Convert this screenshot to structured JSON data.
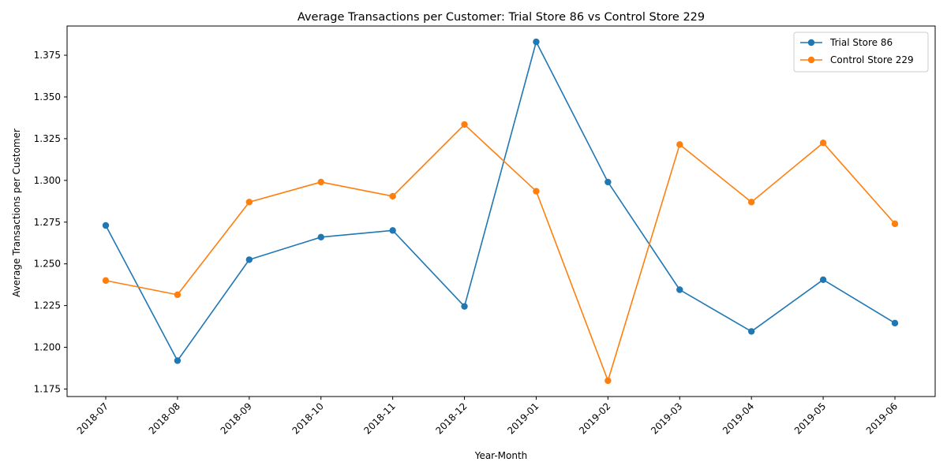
{
  "chart_data": {
    "type": "line",
    "title": "Average Transactions per Customer: Trial Store 86 vs Control Store 229",
    "xlabel": "Year-Month",
    "ylabel": "Average Transactions per Customer",
    "categories": [
      "2018-07",
      "2018-08",
      "2018-09",
      "2018-10",
      "2018-11",
      "2018-12",
      "2019-01",
      "2019-02",
      "2019-03",
      "2019-04",
      "2019-05",
      "2019-06"
    ],
    "yticks": [
      1.175,
      1.2,
      1.225,
      1.25,
      1.275,
      1.3,
      1.325,
      1.35,
      1.375
    ],
    "ytick_labels": [
      "1.175",
      "1.200",
      "1.225",
      "1.250",
      "1.275",
      "1.300",
      "1.325",
      "1.350",
      "1.375"
    ],
    "ylim": [
      1.1705,
      1.3925
    ],
    "grid": false,
    "legend_position": "top-right",
    "series": [
      {
        "name": "Trial Store 86",
        "color": "#1f77b4",
        "values": [
          1.273,
          1.192,
          1.2525,
          1.266,
          1.27,
          1.2245,
          1.383,
          1.299,
          1.2345,
          1.2095,
          1.2405,
          1.2145
        ]
      },
      {
        "name": "Control Store 229",
        "color": "#ff7f0e",
        "values": [
          1.24,
          1.2315,
          1.287,
          1.299,
          1.2905,
          1.3335,
          1.2935,
          1.18,
          1.3215,
          1.287,
          1.3225,
          1.274
        ]
      }
    ]
  }
}
